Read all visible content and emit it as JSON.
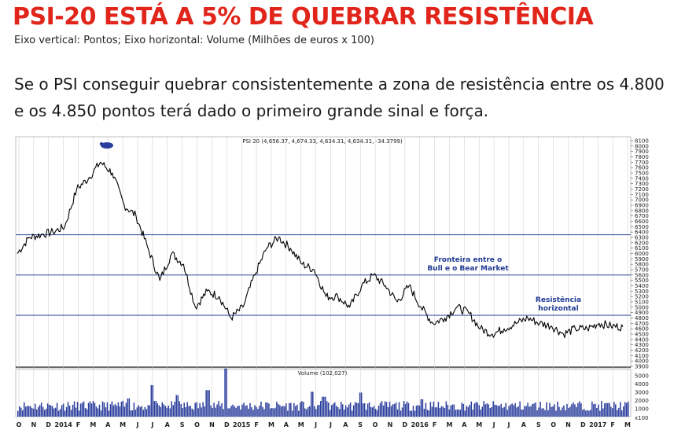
{
  "article": {
    "headline": "PSI-20 ESTÁ A 5% DE QUEBRAR RESISTÊNCIA",
    "subtitle": "Eixo vertical: Pontos; Eixo horizontal: Volume (Milhões de euros x 100)",
    "lead": "Se o PSI conseguir quebrar consistentemente a zona de resistência entre os 4.800 e os 4.850 pontos terá dado o primeiro grande sinal e força."
  },
  "chart_data": [
    {
      "type": "line",
      "title": "PSI 20 (4,656.37, 4,674.33, 4,634.31, 4,634.31, -34.3799)",
      "ylim": [
        3900,
        8100
      ],
      "y_ticks": [
        8100,
        8000,
        7900,
        7800,
        7700,
        7600,
        7500,
        7400,
        7300,
        7200,
        7100,
        7000,
        6900,
        6800,
        6700,
        6600,
        6500,
        6400,
        6300,
        6200,
        6100,
        6000,
        5900,
        5800,
        5700,
        5600,
        5500,
        5400,
        5300,
        5200,
        5100,
        5000,
        4900,
        4800,
        4700,
        4600,
        4500,
        4400,
        4300,
        4200,
        4100,
        4000,
        3900
      ],
      "x_labels": [
        "O",
        "N",
        "D",
        "2014",
        "F",
        "M",
        "A",
        "M",
        "J",
        "J",
        "A",
        "S",
        "O",
        "N",
        "D",
        "2015",
        "F",
        "M",
        "A",
        "M",
        "J",
        "J",
        "A",
        "S",
        "O",
        "N",
        "D",
        "2016",
        "F",
        "M",
        "A",
        "M",
        "J",
        "J",
        "A",
        "S",
        "O",
        "N",
        "D",
        "2017",
        "F",
        "M"
      ],
      "series": [
        {
          "color": "#000000",
          "points": [
            [
              0,
              6000
            ],
            [
              1,
              6300
            ],
            [
              2,
              6350
            ],
            [
              3,
              6400
            ],
            [
              4,
              6500
            ],
            [
              5,
              7200
            ],
            [
              6,
              7400
            ],
            [
              7,
              7700
            ],
            [
              8,
              7500
            ],
            [
              9,
              6900
            ],
            [
              10,
              6700
            ],
            [
              11,
              6100
            ],
            [
              12,
              5500
            ],
            [
              13,
              6000
            ],
            [
              14,
              5800
            ],
            [
              15,
              5000
            ],
            [
              16,
              5300
            ],
            [
              17,
              5200
            ],
            [
              18,
              4800
            ],
            [
              19,
              5000
            ],
            [
              20,
              5600
            ],
            [
              21,
              6100
            ],
            [
              22,
              6300
            ],
            [
              23,
              6100
            ],
            [
              24,
              5800
            ],
            [
              25,
              5700
            ],
            [
              26,
              5200
            ],
            [
              27,
              5200
            ],
            [
              28,
              5000
            ],
            [
              29,
              5400
            ],
            [
              30,
              5600
            ],
            [
              31,
              5400
            ],
            [
              32,
              5100
            ],
            [
              33,
              5400
            ],
            [
              34,
              5000
            ],
            [
              35,
              4700
            ],
            [
              36,
              4800
            ],
            [
              37,
              5000
            ],
            [
              38,
              4900
            ],
            [
              39,
              4600
            ],
            [
              40,
              4500
            ],
            [
              41,
              4600
            ],
            [
              42,
              4700
            ],
            [
              43,
              4800
            ],
            [
              44,
              4700
            ],
            [
              45,
              4650
            ],
            [
              46,
              4500
            ],
            [
              47,
              4600
            ],
            [
              48,
              4600
            ],
            [
              49,
              4700
            ],
            [
              50,
              4650
            ],
            [
              51,
              4634
            ]
          ]
        }
      ],
      "hlines": [
        {
          "value": 6350,
          "color": "#4a5ea8"
        },
        {
          "value": 5600,
          "color": "#4a5ea8",
          "label": [
            "Fronteira entre o",
            "Bull e o Bear Market"
          ]
        },
        {
          "value": 4850,
          "color": "#4a5ea8",
          "label": [
            "Resistência",
            "horizontal"
          ]
        }
      ]
    },
    {
      "type": "bar",
      "title": "Volume (102,027)",
      "ylim": [
        0,
        5500
      ],
      "y_ticks": [
        5000,
        4000,
        3000,
        2000,
        1000
      ],
      "unit_label": "x100",
      "color": "#2a3d9c",
      "spikes": [
        [
          0.18,
          2200
        ],
        [
          0.22,
          3800
        ],
        [
          0.26,
          2600
        ],
        [
          0.34,
          5800
        ],
        [
          0.31,
          3200
        ],
        [
          0.48,
          3000
        ],
        [
          0.5,
          2400
        ],
        [
          0.56,
          2900
        ],
        [
          0.66,
          2100
        ]
      ]
    }
  ]
}
